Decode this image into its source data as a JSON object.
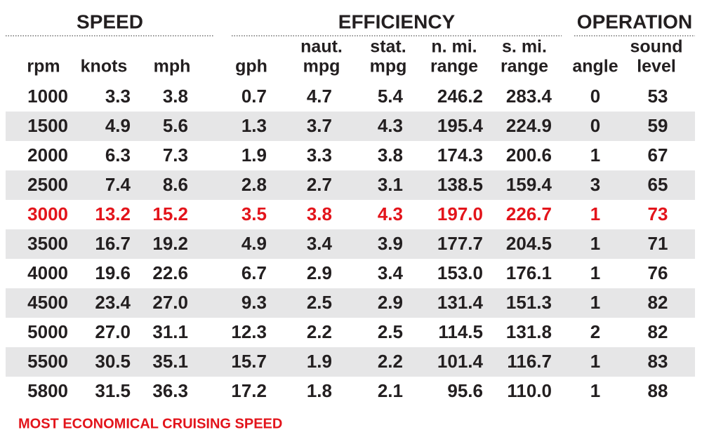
{
  "table": {
    "groups": [
      "SPEED",
      "EFFICIENCY",
      "OPERATION"
    ],
    "columns": [
      [
        "rpm"
      ],
      [
        "knots"
      ],
      [
        "mph"
      ],
      [
        "gph"
      ],
      [
        "naut.",
        "mpg"
      ],
      [
        "stat.",
        "mpg"
      ],
      [
        "n. mi.",
        "range"
      ],
      [
        "s. mi.",
        "range"
      ],
      [
        "angle"
      ],
      [
        "sound",
        "level"
      ]
    ],
    "rows": [
      [
        "1000",
        "3.3",
        "3.8",
        "0.7",
        "4.7",
        "5.4",
        "246.2",
        "283.4",
        "0",
        "53"
      ],
      [
        "1500",
        "4.9",
        "5.6",
        "1.3",
        "3.7",
        "4.3",
        "195.4",
        "224.9",
        "0",
        "59"
      ],
      [
        "2000",
        "6.3",
        "7.3",
        "1.9",
        "3.3",
        "3.8",
        "174.3",
        "200.6",
        "1",
        "67"
      ],
      [
        "2500",
        "7.4",
        "8.6",
        "2.8",
        "2.7",
        "3.1",
        "138.5",
        "159.4",
        "3",
        "65"
      ],
      [
        "3000",
        "13.2",
        "15.2",
        "3.5",
        "3.8",
        "4.3",
        "197.0",
        "226.7",
        "1",
        "73"
      ],
      [
        "3500",
        "16.7",
        "19.2",
        "4.9",
        "3.4",
        "3.9",
        "177.7",
        "204.5",
        "1",
        "71"
      ],
      [
        "4000",
        "19.6",
        "22.6",
        "6.7",
        "2.9",
        "3.4",
        "153.0",
        "176.1",
        "1",
        "76"
      ],
      [
        "4500",
        "23.4",
        "27.0",
        "9.3",
        "2.5",
        "2.9",
        "131.4",
        "151.3",
        "1",
        "82"
      ],
      [
        "5000",
        "27.0",
        "31.1",
        "12.3",
        "2.2",
        "2.5",
        "114.5",
        "131.8",
        "2",
        "82"
      ],
      [
        "5500",
        "30.5",
        "35.1",
        "15.7",
        "1.9",
        "2.2",
        "101.4",
        "116.7",
        "1",
        "83"
      ],
      [
        "5800",
        "31.5",
        "36.3",
        "17.2",
        "1.8",
        "2.1",
        "95.6",
        "110.0",
        "1",
        "88"
      ]
    ],
    "highlight": {
      "row": 4,
      "color": "#e3141b"
    },
    "footnote": "MOST ECONOMICAL CRUISING SPEED"
  }
}
